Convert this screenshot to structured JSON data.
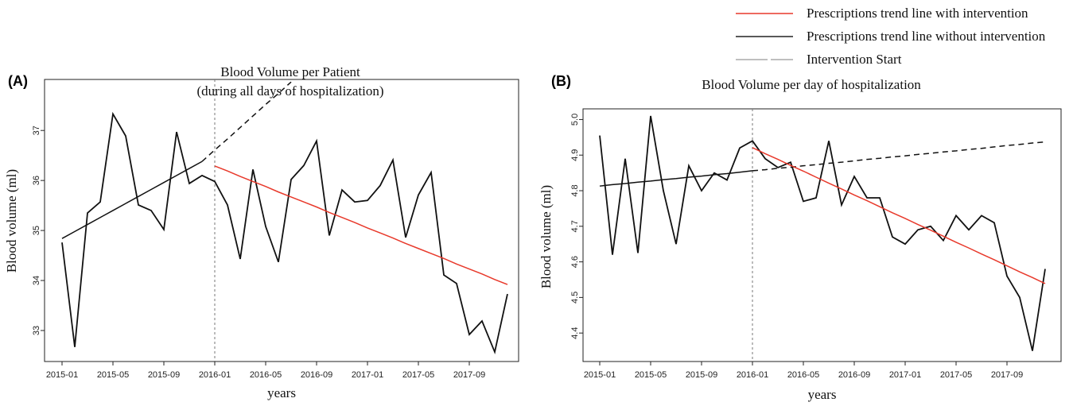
{
  "legend": [
    {
      "name": "Prescriptions trend line with intervention",
      "color": "#e8392b"
    },
    {
      "name": "Prescriptions trend line without intervention",
      "color": "#222222"
    },
    {
      "name": "Intervention Start",
      "color": "#aaaaaa",
      "dash": true
    }
  ],
  "chart_data": [
    {
      "type": "line",
      "panel": "(A)",
      "title": "Blood Volume per Patient",
      "subtitle": "(during all days of hospitalization)",
      "xlabel": "years",
      "ylabel": "Blood volume (ml)",
      "categories": [
        "2015-01",
        null,
        null,
        null,
        "2015-05",
        null,
        null,
        null,
        "2015-09",
        null,
        null,
        null,
        "2016-01",
        null,
        null,
        null,
        "2016-05",
        null,
        null,
        null,
        "2016-09",
        null,
        null,
        null,
        "2017-01",
        null,
        null,
        null,
        "2017-05",
        null,
        null,
        null,
        "2017-09",
        null,
        null,
        null
      ],
      "vline": "2016-01",
      "ylim": [
        32.38,
        38.02
      ],
      "yticks": [
        33,
        34,
        35,
        36,
        37
      ],
      "series": [
        {
          "color": "#111111",
          "values": [
            34.76,
            32.67,
            35.35,
            35.57,
            37.33,
            36.89,
            35.51,
            35.4,
            35.02,
            36.97,
            35.94,
            36.1,
            35.98,
            35.51,
            34.43,
            36.22,
            35.08,
            34.37,
            36.02,
            36.3,
            36.79,
            34.9,
            35.81,
            35.57,
            35.6,
            35.9,
            36.41,
            34.86,
            35.71,
            36.16,
            34.11,
            33.94,
            32.92,
            33.19,
            32.57,
            33.73
          ]
        },
        {
          "color": "#111111",
          "values": [
            34.84,
            34.98,
            35.12,
            35.26,
            35.4,
            35.54,
            35.68,
            35.82,
            35.96,
            36.1,
            36.24,
            36.38,
            null,
            null,
            null,
            null,
            null,
            null,
            null,
            null,
            null,
            null,
            null,
            null,
            null,
            null,
            null,
            null,
            null,
            null,
            null,
            null,
            null,
            null,
            null,
            null
          ]
        },
        {
          "color": "#111111",
          "dash": true,
          "values": [
            null,
            null,
            null,
            null,
            null,
            null,
            null,
            null,
            null,
            null,
            null,
            36.38,
            36.61,
            36.83,
            37.06,
            37.29,
            37.52,
            37.74,
            37.97,
            null,
            null,
            null,
            null,
            null,
            null,
            null,
            null,
            null,
            null,
            null,
            null,
            null,
            null,
            null,
            null,
            null
          ]
        },
        {
          "color": "#e8392b",
          "values": [
            null,
            null,
            null,
            null,
            null,
            null,
            null,
            null,
            null,
            null,
            null,
            null,
            36.29,
            36.19,
            36.08,
            35.98,
            35.88,
            35.77,
            35.67,
            35.57,
            35.47,
            35.36,
            35.26,
            35.16,
            35.05,
            34.95,
            34.85,
            34.74,
            34.64,
            34.54,
            34.44,
            34.33,
            34.23,
            34.13,
            34.02,
            33.92
          ]
        }
      ]
    },
    {
      "type": "line",
      "panel": "(B)",
      "title": "Blood Volume per day of hospitalization",
      "xlabel": "years",
      "ylabel": "Blood volume (ml)",
      "categories": [
        "2015-01",
        null,
        null,
        null,
        "2015-05",
        null,
        null,
        null,
        "2015-09",
        null,
        null,
        null,
        "2016-01",
        null,
        null,
        null,
        "2016-05",
        null,
        null,
        null,
        "2016-09",
        null,
        null,
        null,
        "2017-01",
        null,
        null,
        null,
        "2017-05",
        null,
        null,
        null,
        "2017-09",
        null,
        null,
        null
      ],
      "vline": "2016-01",
      "ylim": [
        4.32,
        5.03
      ],
      "yticks": [
        4.4,
        4.5,
        4.6,
        4.7,
        4.8,
        4.9,
        {
          "value": 5,
          "label": "5.0"
        }
      ],
      "series": [
        {
          "color": "#111111",
          "values": [
            4.955,
            4.62,
            4.89,
            4.625,
            5.01,
            4.8,
            4.65,
            4.87,
            4.8,
            4.85,
            4.83,
            4.92,
            4.94,
            4.89,
            4.865,
            4.88,
            4.77,
            4.78,
            4.94,
            4.76,
            4.84,
            4.78,
            4.78,
            4.67,
            4.65,
            4.69,
            4.7,
            4.66,
            4.73,
            4.69,
            4.73,
            4.71,
            4.56,
            4.5,
            4.35,
            4.58
          ]
        },
        {
          "color": "#111111",
          "values": [
            4.813,
            4.817,
            4.82,
            4.824,
            4.827,
            4.831,
            4.834,
            4.838,
            4.841,
            4.845,
            4.848,
            4.852,
            4.856,
            null,
            null,
            null,
            null,
            null,
            null,
            null,
            null,
            null,
            null,
            null,
            null,
            null,
            null,
            null,
            null,
            null,
            null,
            null,
            null,
            null,
            null,
            null
          ]
        },
        {
          "color": "#111111",
          "dash": true,
          "values": [
            null,
            null,
            null,
            null,
            null,
            null,
            null,
            null,
            null,
            null,
            null,
            null,
            4.856,
            4.859,
            4.863,
            4.866,
            4.87,
            4.873,
            4.877,
            4.88,
            4.884,
            4.888,
            4.891,
            4.895,
            4.898,
            4.902,
            4.905,
            4.909,
            4.912,
            4.916,
            4.919,
            4.923,
            4.927,
            4.93,
            4.934,
            4.937
          ]
        },
        {
          "color": "#e8392b",
          "values": [
            null,
            null,
            null,
            null,
            null,
            null,
            null,
            null,
            null,
            null,
            null,
            null,
            4.921,
            4.904,
            4.888,
            4.871,
            4.855,
            4.838,
            4.821,
            4.805,
            4.788,
            4.772,
            4.755,
            4.738,
            4.722,
            4.705,
            4.689,
            4.672,
            4.655,
            4.639,
            4.622,
            4.606,
            4.589,
            4.572,
            4.556,
            4.539
          ]
        }
      ]
    }
  ]
}
